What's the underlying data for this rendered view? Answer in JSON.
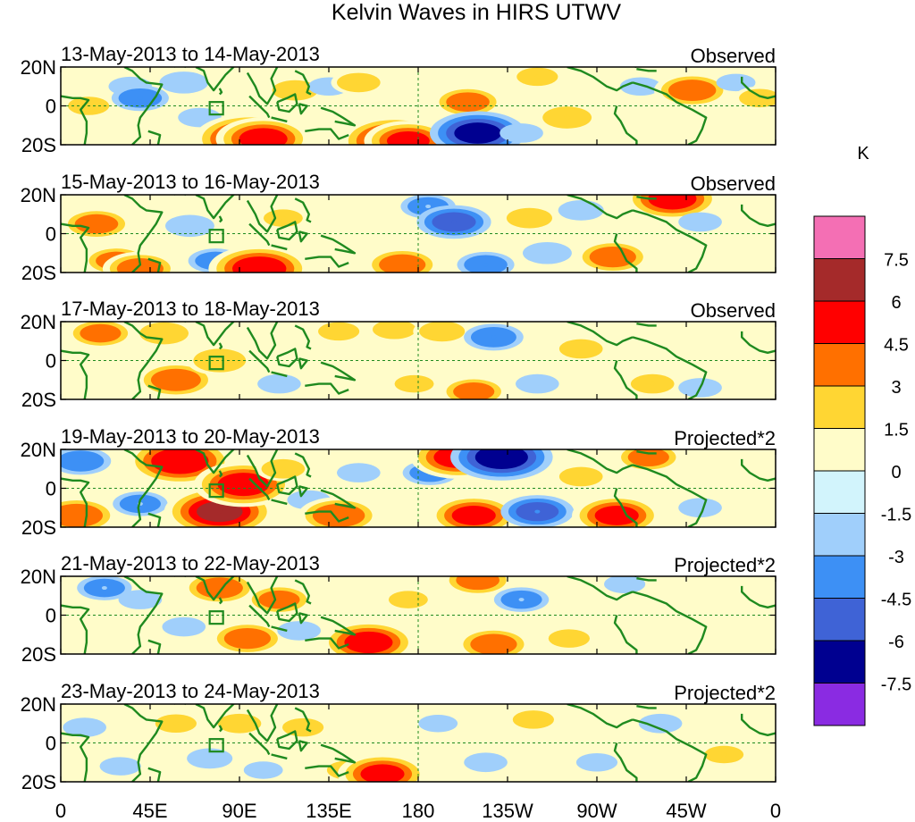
{
  "chart_data": {
    "type": "heatmap",
    "title": "Kelvin Waves in HIRS UTWV",
    "units": "K",
    "x_tick_labels": [
      "0",
      "45E",
      "90E",
      "135E",
      "180",
      "135W",
      "90W",
      "45W",
      "0"
    ],
    "y_tick_labels": [
      "20N",
      "0",
      "20S"
    ],
    "xlim": [
      0,
      360
    ],
    "ylim": [
      -20,
      20
    ],
    "colorbar": {
      "labels": [
        "7.5",
        "6",
        "4.5",
        "3",
        "1.5",
        "0",
        "-1.5",
        "-3",
        "-4.5",
        "-6",
        "-7.5"
      ],
      "levels": [
        7.5,
        6,
        4.5,
        3,
        1.5,
        0,
        -1.5,
        -3,
        -4.5,
        -6,
        -7.5
      ],
      "colors": [
        "#f46fb4",
        "#a52a2a",
        "#ff0000",
        "#ff7000",
        "#ffd633",
        "#fffcc9",
        "#d2f4fc",
        "#a0cffb",
        "#3d90f5",
        "#3f63d6",
        "#000090",
        "#8a2be2"
      ]
    },
    "panels": [
      {
        "date_label": "13-May-2013 to 14-May-2013",
        "type_label": "Observed",
        "anomalies": [
          {
            "lon": 14,
            "lat": 0,
            "value": 1.8
          },
          {
            "lon": 35,
            "lat": 10,
            "value": -2.0
          },
          {
            "lon": 40,
            "lat": 4,
            "value": -3.2
          },
          {
            "lon": 62,
            "lat": 12,
            "value": -2.5
          },
          {
            "lon": 70,
            "lat": -6,
            "value": -2.0
          },
          {
            "lon": 95,
            "lat": -17,
            "value": 6.2
          },
          {
            "lon": 102,
            "lat": -17,
            "value": 5.0
          },
          {
            "lon": 118,
            "lat": 8,
            "value": 2.2
          },
          {
            "lon": 135,
            "lat": 10,
            "value": -1.8
          },
          {
            "lon": 150,
            "lat": 12,
            "value": 2.0
          },
          {
            "lon": 168,
            "lat": -18,
            "value": 6.0
          },
          {
            "lon": 175,
            "lat": -18,
            "value": 4.5
          },
          {
            "lon": 205,
            "lat": 2,
            "value": 3.2
          },
          {
            "lon": 210,
            "lat": -14,
            "value": -6.3
          },
          {
            "lon": 232,
            "lat": -14,
            "value": -2.0
          },
          {
            "lon": 240,
            "lat": 15,
            "value": 1.8
          },
          {
            "lon": 255,
            "lat": -6,
            "value": 2.5
          },
          {
            "lon": 292,
            "lat": 10,
            "value": -1.8
          },
          {
            "lon": 318,
            "lat": 8,
            "value": 3.6
          },
          {
            "lon": 340,
            "lat": 12,
            "value": -1.6
          },
          {
            "lon": 352,
            "lat": 4,
            "value": 1.8
          }
        ]
      },
      {
        "date_label": "15-May-2013 to 16-May-2013",
        "type_label": "Observed",
        "anomalies": [
          {
            "lon": 18,
            "lat": 5,
            "value": 3.2
          },
          {
            "lon": 28,
            "lat": -14,
            "value": 3.0
          },
          {
            "lon": 40,
            "lat": -18,
            "value": 3.5
          },
          {
            "lon": 65,
            "lat": 4,
            "value": -2.5
          },
          {
            "lon": 78,
            "lat": -14,
            "value": -3.0
          },
          {
            "lon": 100,
            "lat": -18,
            "value": 5.5
          },
          {
            "lon": 112,
            "lat": 8,
            "value": 1.6
          },
          {
            "lon": 172,
            "lat": -16,
            "value": 3.5
          },
          {
            "lon": 185,
            "lat": 14,
            "value": -3.0
          },
          {
            "lon": 198,
            "lat": 6,
            "value": -4.6
          },
          {
            "lon": 214,
            "lat": -16,
            "value": -3.2
          },
          {
            "lon": 236,
            "lat": 8,
            "value": 2.2
          },
          {
            "lon": 245,
            "lat": -10,
            "value": -2.5
          },
          {
            "lon": 262,
            "lat": 12,
            "value": -2.2
          },
          {
            "lon": 278,
            "lat": -12,
            "value": 3.5
          },
          {
            "lon": 308,
            "lat": 18,
            "value": 5.0
          },
          {
            "lon": 322,
            "lat": 6,
            "value": -2.0
          }
        ]
      },
      {
        "date_label": "17-May-2013 to 18-May-2013",
        "type_label": "Observed",
        "anomalies": [
          {
            "lon": 20,
            "lat": 14,
            "value": 3.0
          },
          {
            "lon": 52,
            "lat": 14,
            "value": 2.5
          },
          {
            "lon": 58,
            "lat": -10,
            "value": 3.8
          },
          {
            "lon": 80,
            "lat": 0,
            "value": 2.8
          },
          {
            "lon": 110,
            "lat": -12,
            "value": -2.0
          },
          {
            "lon": 140,
            "lat": 15,
            "value": 1.8
          },
          {
            "lon": 168,
            "lat": 16,
            "value": 2.0
          },
          {
            "lon": 178,
            "lat": -12,
            "value": 1.6
          },
          {
            "lon": 192,
            "lat": 15,
            "value": 2.2
          },
          {
            "lon": 208,
            "lat": -16,
            "value": 3.0
          },
          {
            "lon": 218,
            "lat": 12,
            "value": -3.4
          },
          {
            "lon": 240,
            "lat": -12,
            "value": -2.0
          },
          {
            "lon": 262,
            "lat": 6,
            "value": 2.0
          },
          {
            "lon": 298,
            "lat": -12,
            "value": 2.0
          },
          {
            "lon": 322,
            "lat": -14,
            "value": -2.0
          }
        ]
      },
      {
        "date_label": "19-May-2013 to 20-May-2013",
        "type_label": "Projected*2",
        "anomalies": [
          {
            "lon": 10,
            "lat": 14,
            "value": -3.5
          },
          {
            "lon": 8,
            "lat": -14,
            "value": 4.0
          },
          {
            "lon": 40,
            "lat": -8,
            "value": -3.0
          },
          {
            "lon": 60,
            "lat": 14,
            "value": 5.8
          },
          {
            "lon": 80,
            "lat": -12,
            "value": 6.2
          },
          {
            "lon": 92,
            "lat": 2,
            "value": 5.3
          },
          {
            "lon": 112,
            "lat": 10,
            "value": 2.0
          },
          {
            "lon": 125,
            "lat": -6,
            "value": -2.0
          },
          {
            "lon": 140,
            "lat": -14,
            "value": 4.0
          },
          {
            "lon": 150,
            "lat": 8,
            "value": -2.0
          },
          {
            "lon": 186,
            "lat": 8,
            "value": -3.0
          },
          {
            "lon": 200,
            "lat": 16,
            "value": 5.0
          },
          {
            "lon": 208,
            "lat": -14,
            "value": 4.6
          },
          {
            "lon": 222,
            "lat": 16,
            "value": -6.8
          },
          {
            "lon": 240,
            "lat": -12,
            "value": -4.5
          },
          {
            "lon": 262,
            "lat": 6,
            "value": 2.0
          },
          {
            "lon": 280,
            "lat": -14,
            "value": 4.6
          },
          {
            "lon": 296,
            "lat": 16,
            "value": 3.0
          },
          {
            "lon": 322,
            "lat": -10,
            "value": -2.0
          }
        ]
      },
      {
        "date_label": "21-May-2013 to 22-May-2013",
        "type_label": "Projected*2",
        "anomalies": [
          {
            "lon": 22,
            "lat": 14,
            "value": -3.0
          },
          {
            "lon": 40,
            "lat": 8,
            "value": -2.0
          },
          {
            "lon": 62,
            "lat": -6,
            "value": -2.0
          },
          {
            "lon": 80,
            "lat": 14,
            "value": 3.5
          },
          {
            "lon": 94,
            "lat": -12,
            "value": 3.5
          },
          {
            "lon": 110,
            "lat": 8,
            "value": 3.0
          },
          {
            "lon": 120,
            "lat": -8,
            "value": -2.0
          },
          {
            "lon": 155,
            "lat": -14,
            "value": 5.0
          },
          {
            "lon": 175,
            "lat": 8,
            "value": 1.6
          },
          {
            "lon": 210,
            "lat": 18,
            "value": 3.2
          },
          {
            "lon": 218,
            "lat": -15,
            "value": 3.5
          },
          {
            "lon": 232,
            "lat": 8,
            "value": -3.0
          },
          {
            "lon": 256,
            "lat": -12,
            "value": 1.8
          },
          {
            "lon": 284,
            "lat": 16,
            "value": -1.8
          }
        ]
      },
      {
        "date_label": "23-May-2013 to 24-May-2013",
        "type_label": "Projected*2",
        "anomalies": [
          {
            "lon": 12,
            "lat": 8,
            "value": -2.0
          },
          {
            "lon": 30,
            "lat": -12,
            "value": -1.8
          },
          {
            "lon": 58,
            "lat": 10,
            "value": 1.8
          },
          {
            "lon": 75,
            "lat": -8,
            "value": -2.2
          },
          {
            "lon": 90,
            "lat": 10,
            "value": 2.0
          },
          {
            "lon": 102,
            "lat": -14,
            "value": -1.6
          },
          {
            "lon": 122,
            "lat": 8,
            "value": 1.8
          },
          {
            "lon": 145,
            "lat": -14,
            "value": 2.0
          },
          {
            "lon": 162,
            "lat": -16,
            "value": 4.6
          },
          {
            "lon": 190,
            "lat": 10,
            "value": -1.6
          },
          {
            "lon": 214,
            "lat": -10,
            "value": -2.0
          },
          {
            "lon": 238,
            "lat": 12,
            "value": 1.8
          },
          {
            "lon": 270,
            "lat": -10,
            "value": -1.8
          },
          {
            "lon": 302,
            "lat": 10,
            "value": -2.0
          },
          {
            "lon": 334,
            "lat": -6,
            "value": 1.6
          }
        ]
      }
    ]
  }
}
